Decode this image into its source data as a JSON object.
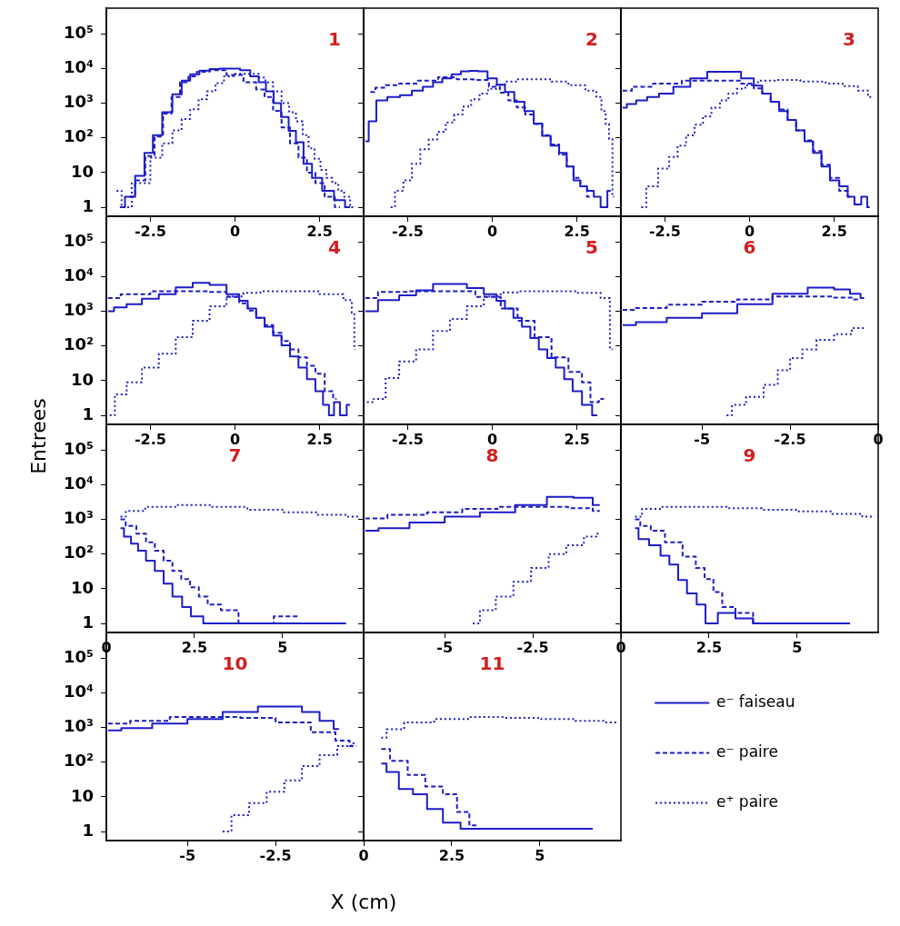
{
  "chart_data": [
    {
      "type": "step",
      "title": "1",
      "log": true,
      "xlim": [
        -3.8,
        3.8
      ],
      "xticks": [
        -2.5,
        0,
        2.5
      ],
      "ylim": [
        0.55,
        550000
      ],
      "yticks": [
        1,
        10,
        {
          "value": 100,
          "label": "10²"
        },
        {
          "value": 1000,
          "label": "10³"
        },
        {
          "value": 10000,
          "label": "10⁴"
        },
        {
          "value": 100000,
          "label": "10⁵"
        }
      ],
      "series": [
        {
          "color": "#1c1cc8",
          "line_style": "solid",
          "x": [
            -3.4,
            -3.1,
            -2.8,
            -2.55,
            -2.3,
            -2.0,
            -1.7,
            -1.45,
            -1.2,
            -0.9,
            -0.6,
            -0.3,
            0,
            0.3,
            0.6,
            0.8,
            1.03,
            1.25,
            1.47,
            1.7,
            1.9,
            2.15,
            2.4,
            2.75,
            3.1,
            3.4
          ],
          "values": [
            1,
            2,
            8,
            37,
            120,
            550,
            1800,
            4500,
            6800,
            8700,
            9700,
            10000,
            10000,
            9000,
            6000,
            4000,
            2200,
            1000,
            400,
            160,
            75,
            18,
            7,
            3,
            1.6,
            1
          ]
        },
        {
          "color": "#1c1cc8",
          "line_style": "dashed",
          "x": [
            -3.1,
            -2.8,
            -2.5,
            -2.25,
            -2.0,
            -1.75,
            -1.5,
            -1.25,
            -1.0,
            -0.5,
            0,
            0.5,
            0.75,
            1.0,
            1.25,
            1.5,
            1.75,
            2.0,
            2.25,
            2.5,
            2.8,
            3.1
          ],
          "values": [
            2,
            6,
            30,
            110,
            500,
            1500,
            4000,
            6000,
            8000,
            9000,
            6500,
            4000,
            2500,
            1500,
            600,
            200,
            70,
            27,
            10,
            5,
            2,
            1
          ]
        },
        {
          "color": "#1c1cc8",
          "line_style": "dotted",
          "x": [
            -3.5,
            -3.2,
            -2.9,
            -2.7,
            -2.3,
            -2.0,
            -1.7,
            -1.45,
            -1.2,
            -0.95,
            -0.7,
            -0.45,
            -0.2,
            0.2,
            0.6,
            0.8,
            1.0,
            1.25,
            1.5,
            1.7,
            1.9,
            2.1,
            2.25,
            2.45,
            2.6,
            2.8,
            2.95,
            3.15,
            3.3,
            3.5
          ],
          "values": [
            3,
            1,
            5,
            5,
            27,
            70,
            165,
            350,
            670,
            1300,
            2200,
            3800,
            6000,
            7000,
            7000,
            5500,
            4000,
            2200,
            1000,
            550,
            300,
            120,
            50,
            25,
            12,
            7,
            5,
            3,
            2,
            1
          ]
        }
      ]
    },
    {
      "type": "step",
      "title": "2",
      "log": true,
      "xlim": [
        -3.8,
        3.8
      ],
      "xticks": [
        -2.5,
        0,
        2.5
      ],
      "ylim": [
        0.55,
        550000
      ],
      "yticks": [
        1,
        10,
        100,
        1000,
        10000,
        100000
      ],
      "tick_labels": "x",
      "series": [
        {
          "color": "#1c1cc8",
          "line_style": "solid",
          "x": [
            -3.75,
            -3.55,
            -3.3,
            -2.9,
            -2.55,
            -2.2,
            -1.9,
            -1.6,
            -1.35,
            -1.05,
            -0.8,
            -0.55,
            -0.3,
            0.02,
            0.25,
            0.5,
            0.8,
            1.1,
            1.35,
            1.6,
            1.85,
            2.1,
            2.3,
            2.5,
            2.7,
            2.9,
            3.1,
            3.3,
            3.5
          ],
          "values": [
            80,
            300,
            1200,
            1500,
            1700,
            2300,
            3000,
            4000,
            5200,
            6800,
            8300,
            8500,
            8300,
            5200,
            3400,
            2100,
            1100,
            590,
            260,
            115,
            60,
            37,
            15,
            6,
            4,
            3,
            2,
            1,
            3
          ]
        },
        {
          "color": "#1c1cc8",
          "line_style": "dashed",
          "x": [
            -3.6,
            -3.3,
            -3.0,
            -2.5,
            -1.9,
            -1.3,
            -0.8,
            -0.3,
            0.1,
            0.35,
            0.6,
            0.85,
            1.1,
            1.35,
            1.6,
            1.85,
            2.1,
            2.3,
            2.5,
            2.7,
            2.9
          ],
          "values": [
            2100,
            2800,
            3300,
            3700,
            4500,
            5600,
            4900,
            4700,
            3000,
            2000,
            1200,
            750,
            470,
            250,
            120,
            65,
            33,
            15,
            7,
            4,
            2
          ]
        },
        {
          "color": "#1c1cc8",
          "line_style": "dotted",
          "x": [
            -3.0,
            -2.75,
            -2.5,
            -2.25,
            -2.0,
            -1.75,
            -1.5,
            -1.25,
            -1.0,
            -0.75,
            -0.5,
            -0.25,
            0,
            0.25,
            0.5,
            1.0,
            1.5,
            2.0,
            2.5,
            3.0,
            3.15,
            3.3,
            3.4,
            3.5,
            3.6
          ],
          "values": [
            1,
            3,
            6,
            18,
            47,
            90,
            150,
            280,
            470,
            800,
            1300,
            1900,
            2600,
            3400,
            4200,
            4900,
            4900,
            4200,
            3300,
            2300,
            1500,
            590,
            250,
            93,
            2
          ]
        }
      ]
    },
    {
      "type": "step",
      "title": "3",
      "log": true,
      "xlim": [
        -3.8,
        3.8
      ],
      "xticks": [
        -2.5,
        0,
        2.5
      ],
      "ylim": [
        0.55,
        550000
      ],
      "yticks": [
        1,
        10,
        100,
        1000,
        10000,
        100000
      ],
      "tick_labels": "x",
      "series": [
        {
          "color": "#1c1cc8",
          "line_style": "solid",
          "x": [
            -3.75,
            -3.5,
            -3.2,
            -2.85,
            -2.5,
            -2.0,
            -1.5,
            -1.0,
            -0.5,
            0,
            0.25,
            0.5,
            0.75,
            1.0,
            1.25,
            1.5,
            1.75,
            2.0,
            2.25,
            2.5,
            2.8,
            3.0,
            3.2,
            3.4,
            3.55
          ],
          "values": [
            740,
            950,
            1200,
            1500,
            1900,
            3000,
            5200,
            8000,
            8000,
            5200,
            3200,
            1900,
            1100,
            590,
            330,
            165,
            80,
            37,
            15,
            6,
            4,
            2,
            1.2,
            2,
            1
          ]
        },
        {
          "color": "#1c1cc8",
          "line_style": "dashed",
          "x": [
            -3.75,
            -3.2,
            -2.5,
            -1.5,
            -0.5,
            0,
            0.25,
            0.5,
            0.75,
            1.0,
            1.25,
            1.5,
            1.75,
            2.0,
            2.25,
            2.5,
            2.8,
            3.0
          ],
          "values": [
            2300,
            3000,
            3700,
            4500,
            4500,
            3700,
            2700,
            1900,
            1100,
            660,
            330,
            165,
            85,
            42,
            17,
            7,
            3,
            2
          ]
        },
        {
          "color": "#1c1cc8",
          "line_style": "dotted",
          "x": [
            -3.2,
            -2.9,
            -2.5,
            -2.25,
            -2.0,
            -1.75,
            -1.5,
            -1.25,
            -1.0,
            -0.75,
            -0.5,
            -0.25,
            0,
            0.5,
            1.0,
            2.0,
            2.5,
            3.0,
            3.4,
            3.6
          ],
          "values": [
            1,
            4,
            13,
            28,
            60,
            120,
            240,
            420,
            740,
            1200,
            1900,
            2600,
            3300,
            4500,
            4700,
            4200,
            3700,
            3100,
            2300,
            1500
          ]
        }
      ]
    },
    {
      "type": "step",
      "title": "4",
      "log": true,
      "xlim": [
        -3.8,
        3.8
      ],
      "xticks": [
        -2.5,
        0,
        2.5
      ],
      "ylim": [
        0.55,
        550000
      ],
      "yticks": [
        1,
        10,
        {
          "value": 100,
          "label": "10²"
        },
        {
          "value": 1000,
          "label": "10³"
        },
        {
          "value": 10000,
          "label": "10⁴"
        },
        {
          "value": 100000,
          "label": "10⁵"
        }
      ],
      "series": [
        {
          "color": "#1c1cc8",
          "line_style": "solid",
          "x": [
            -3.75,
            -3.4,
            -3.0,
            -2.5,
            -2.0,
            -1.5,
            -1.0,
            -0.5,
            0,
            0.25,
            0.5,
            0.75,
            1.0,
            1.25,
            1.5,
            1.75,
            2.0,
            2.25,
            2.5,
            2.7,
            2.85,
            3.0,
            3.2,
            3.4
          ],
          "values": [
            1000,
            1300,
            1600,
            2300,
            3100,
            4900,
            6600,
            5800,
            3100,
            2000,
            1200,
            650,
            360,
            200,
            105,
            50,
            24,
            11,
            5,
            2,
            1,
            2.4,
            1,
            2
          ]
        },
        {
          "color": "#1c1cc8",
          "line_style": "dashed",
          "x": [
            -3.75,
            -3.0,
            -2.0,
            -1.5,
            -1.0,
            -0.5,
            0,
            0.25,
            0.5,
            0.75,
            1.0,
            1.25,
            1.5,
            1.75,
            2.0,
            2.25,
            2.5,
            2.8,
            3.0
          ],
          "values": [
            2400,
            3100,
            3800,
            3800,
            3800,
            3600,
            2600,
            1700,
            1050,
            650,
            400,
            240,
            140,
            80,
            47,
            27,
            16,
            5,
            3
          ]
        },
        {
          "color": "#1c1cc8",
          "line_style": "dotted",
          "x": [
            -3.7,
            -3.4,
            -3.0,
            -2.5,
            -2.0,
            -1.5,
            -1.0,
            -0.5,
            0,
            0.5,
            1.0,
            2.0,
            3.0,
            3.4,
            3.5,
            3.55
          ],
          "values": [
            1,
            4,
            9,
            24,
            60,
            180,
            530,
            1400,
            2700,
            3400,
            3800,
            3800,
            3100,
            2100,
            900,
            80
          ]
        }
      ]
    },
    {
      "type": "step",
      "title": "5",
      "log": true,
      "xlim": [
        -3.8,
        3.8
      ],
      "xticks": [
        -2.5,
        0,
        2.5
      ],
      "ylim": [
        0.55,
        550000
      ],
      "yticks": [
        1,
        10,
        100,
        1000,
        10000,
        100000
      ],
      "tick_labels": "x",
      "series": [
        {
          "color": "#1c1cc8",
          "line_style": "solid",
          "x": [
            -3.75,
            -3.0,
            -2.5,
            -2.0,
            -1.5,
            -1.0,
            -0.5,
            0,
            0.25,
            0.5,
            0.75,
            1.0,
            1.25,
            1.5,
            1.75,
            2.0,
            2.25,
            2.5,
            2.8,
            3.1
          ],
          "values": [
            1000,
            2100,
            2900,
            4000,
            6100,
            6100,
            4700,
            3100,
            2000,
            1200,
            650,
            360,
            170,
            80,
            45,
            24,
            11,
            5,
            2,
            1
          ]
        },
        {
          "color": "#1c1cc8",
          "line_style": "dashed",
          "x": [
            -3.75,
            -3.0,
            -2.0,
            -1.0,
            0,
            0.5,
            1.0,
            1.5,
            2.0,
            2.5,
            2.8,
            3.0,
            3.3
          ],
          "values": [
            2400,
            3600,
            3800,
            3800,
            2600,
            1200,
            530,
            180,
            47,
            18,
            9,
            2.4,
            3
          ]
        },
        {
          "color": "#1c1cc8",
          "line_style": "dotted",
          "x": [
            -3.7,
            -3.3,
            -3.0,
            -2.5,
            -2.0,
            -1.5,
            -1.0,
            -0.5,
            0,
            0.5,
            1.0,
            2.0,
            3.0,
            3.4,
            3.55
          ],
          "values": [
            2.4,
            3,
            12,
            36,
            80,
            270,
            600,
            1400,
            2700,
            3500,
            3800,
            3800,
            3400,
            2400,
            80
          ]
        }
      ]
    },
    {
      "type": "step",
      "title": "6",
      "log": true,
      "xlim": [
        -7.3,
        0
      ],
      "xticks": [
        -5,
        -2.5,
        0
      ],
      "ylim": [
        0.55,
        550000
      ],
      "yticks": [
        1,
        10,
        100,
        1000,
        10000,
        100000
      ],
      "tick_labels": "x",
      "series": [
        {
          "color": "#1c1cc8",
          "line_style": "solid",
          "x": [
            -7.25,
            -6.5,
            -5.5,
            -4.5,
            -3.5,
            -2.5,
            -1.5,
            -1.0,
            -0.6,
            -0.4
          ],
          "values": [
            400,
            490,
            650,
            880,
            1600,
            3200,
            4800,
            4300,
            3200,
            2400
          ]
        },
        {
          "color": "#1c1cc8",
          "line_style": "dashed",
          "x": [
            -7.25,
            -6.5,
            -5.5,
            -4.5,
            -3.5,
            -2.5,
            -1.5,
            -1.0,
            -0.5
          ],
          "values": [
            1100,
            1250,
            1550,
            1900,
            2200,
            2700,
            2700,
            2500,
            2200
          ]
        },
        {
          "color": "#1c1cc8",
          "line_style": "dotted",
          "x": [
            -4.3,
            -4.0,
            -3.5,
            -3.0,
            -2.7,
            -2.3,
            -2.0,
            -1.5,
            -1.0,
            -0.5,
            -0.4
          ],
          "values": [
            1,
            2,
            3.4,
            7.6,
            20,
            45,
            80,
            150,
            220,
            330,
            330
          ]
        }
      ]
    },
    {
      "type": "step",
      "title": "7",
      "log": true,
      "xlim": [
        0,
        7.3
      ],
      "xticks": [
        0,
        2.5,
        5
      ],
      "ylim": [
        0.55,
        550000
      ],
      "yticks": [
        1,
        10,
        {
          "value": 100,
          "label": "10²"
        },
        {
          "value": 1000,
          "label": "10³"
        },
        {
          "value": 10000,
          "label": "10⁴"
        },
        {
          "value": 100000,
          "label": "10⁵"
        }
      ],
      "ylabel": "Entrees",
      "series": [
        {
          "color": "#1c1cc8",
          "line_style": "solid",
          "x": [
            0.4,
            0.6,
            0.8,
            1.0,
            1.25,
            1.5,
            1.75,
            2.0,
            2.3,
            2.5,
            3.0,
            3.5,
            4.5,
            6.2,
            6.8
          ],
          "values": [
            560,
            320,
            200,
            125,
            65,
            33,
            14,
            6,
            3,
            1.6,
            1,
            1,
            1,
            1,
            1
          ]
        },
        {
          "color": "#1c1cc8",
          "line_style": "dashed",
          "x": [
            0.4,
            0.7,
            1.0,
            1.25,
            1.5,
            1.75,
            2.0,
            2.25,
            2.5,
            2.75,
            3.0,
            3.5,
            4.0,
            5.5
          ],
          "values": [
            1000,
            650,
            390,
            220,
            125,
            65,
            33,
            19,
            11,
            6,
            3.5,
            2.4,
            1,
            1.6
          ]
        },
        {
          "color": "#1c1cc8",
          "line_style": "dotted",
          "x": [
            0.4,
            0.7,
            1.5,
            2.5,
            3.5,
            4.5,
            5.5,
            6.5,
            7.2
          ],
          "values": [
            1200,
            1750,
            2300,
            2600,
            2300,
            1900,
            1600,
            1350,
            1200
          ]
        }
      ]
    },
    {
      "type": "step",
      "title": "8",
      "log": true,
      "xlim": [
        -7.3,
        0
      ],
      "xticks": [
        -5,
        -2.5,
        0
      ],
      "ylim": [
        0.55,
        550000
      ],
      "yticks": [
        1,
        10,
        100,
        1000,
        10000,
        100000
      ],
      "tick_labels": "x",
      "series": [
        {
          "color": "#1c1cc8",
          "line_style": "solid",
          "x": [
            -7.25,
            -6.5,
            -5.5,
            -4.5,
            -3.5,
            -2.5,
            -1.7,
            -1.0,
            -0.6
          ],
          "values": [
            470,
            560,
            820,
            1200,
            1600,
            2600,
            4500,
            4200,
            2600
          ]
        },
        {
          "color": "#1c1cc8",
          "line_style": "dashed",
          "x": [
            -7.25,
            -6.0,
            -5.0,
            -4.0,
            -3.0,
            -2.0,
            -1.0,
            -0.6
          ],
          "values": [
            1070,
            1350,
            1600,
            2000,
            2300,
            2300,
            2100,
            1750
          ]
        },
        {
          "color": "#1c1cc8",
          "line_style": "dotted",
          "x": [
            -4.2,
            -3.8,
            -3.3,
            -2.8,
            -2.3,
            -1.8,
            -1.3,
            -0.8,
            -0.6
          ],
          "values": [
            1,
            2.4,
            6,
            16,
            40,
            100,
            180,
            320,
            390
          ]
        }
      ]
    },
    {
      "type": "step",
      "title": "9",
      "log": true,
      "xlim": [
        0,
        7.3
      ],
      "xticks": [
        2.5,
        5
      ],
      "ylim": [
        0.55,
        550000
      ],
      "yticks": [
        1,
        10,
        100,
        1000,
        10000,
        100000
      ],
      "tick_labels": "x",
      "series": [
        {
          "color": "#1c1cc8",
          "line_style": "solid",
          "x": [
            0.4,
            0.6,
            1.0,
            1.25,
            1.5,
            1.75,
            2.0,
            2.3,
            2.5,
            3.0,
            3.5,
            4.0,
            5.5,
            6.5
          ],
          "values": [
            560,
            270,
            180,
            90,
            50,
            18,
            7.4,
            3.5,
            1,
            2,
            1.4,
            1,
            1,
            1
          ]
        },
        {
          "color": "#1c1cc8",
          "line_style": "dashed",
          "x": [
            0.4,
            0.7,
            1.0,
            1.5,
            2.0,
            2.25,
            2.5,
            2.75,
            3.0,
            3.5,
            4.0
          ],
          "values": [
            1000,
            650,
            470,
            220,
            85,
            40,
            19,
            8,
            3,
            2,
            1
          ]
        },
        {
          "color": "#1c1cc8",
          "line_style": "dotted",
          "x": [
            0.4,
            0.8,
            1.5,
            2.5,
            3.5,
            4.5,
            5.5,
            6.5,
            7.2
          ],
          "values": [
            1200,
            2000,
            2300,
            2300,
            2100,
            1900,
            1700,
            1450,
            1200
          ]
        }
      ]
    },
    {
      "type": "step",
      "title": "10",
      "log": true,
      "xlim": [
        -7.3,
        0
      ],
      "xticks": [
        -5,
        -2.5,
        0
      ],
      "ylim": [
        0.55,
        550000
      ],
      "yticks": [
        1,
        10,
        {
          "value": 100,
          "label": "10²"
        },
        {
          "value": 1000,
          "label": "10³"
        },
        {
          "value": 10000,
          "label": "10⁴"
        },
        {
          "value": 100000,
          "label": "10⁵"
        }
      ],
      "xlabel": "X (cm)",
      "series": [
        {
          "color": "#1c1cc8",
          "line_style": "solid",
          "x": [
            -7.25,
            -6.5,
            -5.5,
            -4.5,
            -3.5,
            -2.5,
            -2.0,
            -1.5,
            -1.0,
            -0.7
          ],
          "values": [
            830,
            960,
            1300,
            1750,
            2800,
            4000,
            4000,
            2800,
            1550,
            900
          ]
        },
        {
          "color": "#1c1cc8",
          "line_style": "dashed",
          "x": [
            -7.25,
            -6.0,
            -5.0,
            -4.0,
            -3.0,
            -2.0,
            -1.0,
            -0.6,
            -0.2
          ],
          "values": [
            1300,
            1550,
            2000,
            2000,
            1900,
            1400,
            730,
            420,
            290
          ]
        },
        {
          "color": "#1c1cc8",
          "line_style": "dotted",
          "x": [
            -4.0,
            -3.5,
            -3.0,
            -2.5,
            -2.0,
            -1.5,
            -1.0,
            -0.5,
            -0.2
          ],
          "values": [
            1,
            3,
            6.6,
            14,
            30,
            77,
            160,
            290,
            350
          ]
        }
      ]
    },
    {
      "type": "step",
      "title": "11",
      "log": true,
      "xlim": [
        0,
        7.3
      ],
      "xticks": [
        2.5,
        5
      ],
      "ylim": [
        0.55,
        550000
      ],
      "yticks": [
        1,
        10,
        100,
        1000,
        10000,
        100000
      ],
      "tick_labels": "x",
      "legend": "right",
      "series": [
        {
          "name": "e⁻ faiseau",
          "color": "#1c1cc8",
          "line_style": "solid",
          "x": [
            0.5,
            0.8,
            1.2,
            1.6,
            2.0,
            2.5,
            3.0,
            3.5,
            4.5,
            6.5
          ],
          "values": [
            92,
            52,
            17,
            12,
            4.5,
            1.8,
            1.2,
            1.2,
            1.2,
            1.2
          ]
        },
        {
          "name": "e⁻ paire",
          "color": "#1c1cc8",
          "line_style": "dashed",
          "x": [
            0.5,
            1.0,
            1.5,
            2.0,
            2.5,
            2.8,
            3.2
          ],
          "values": [
            240,
            110,
            43,
            20,
            12,
            3.7,
            1.5
          ]
        },
        {
          "name": "e⁺ paire",
          "color": "#1c1cc8",
          "line_style": "dotted",
          "x": [
            0.5,
            0.8,
            1.5,
            2.5,
            3.5,
            4.5,
            5.5,
            6.5,
            7.2
          ],
          "values": [
            510,
            890,
            1400,
            1750,
            2000,
            1900,
            1750,
            1550,
            1400
          ]
        }
      ]
    }
  ]
}
